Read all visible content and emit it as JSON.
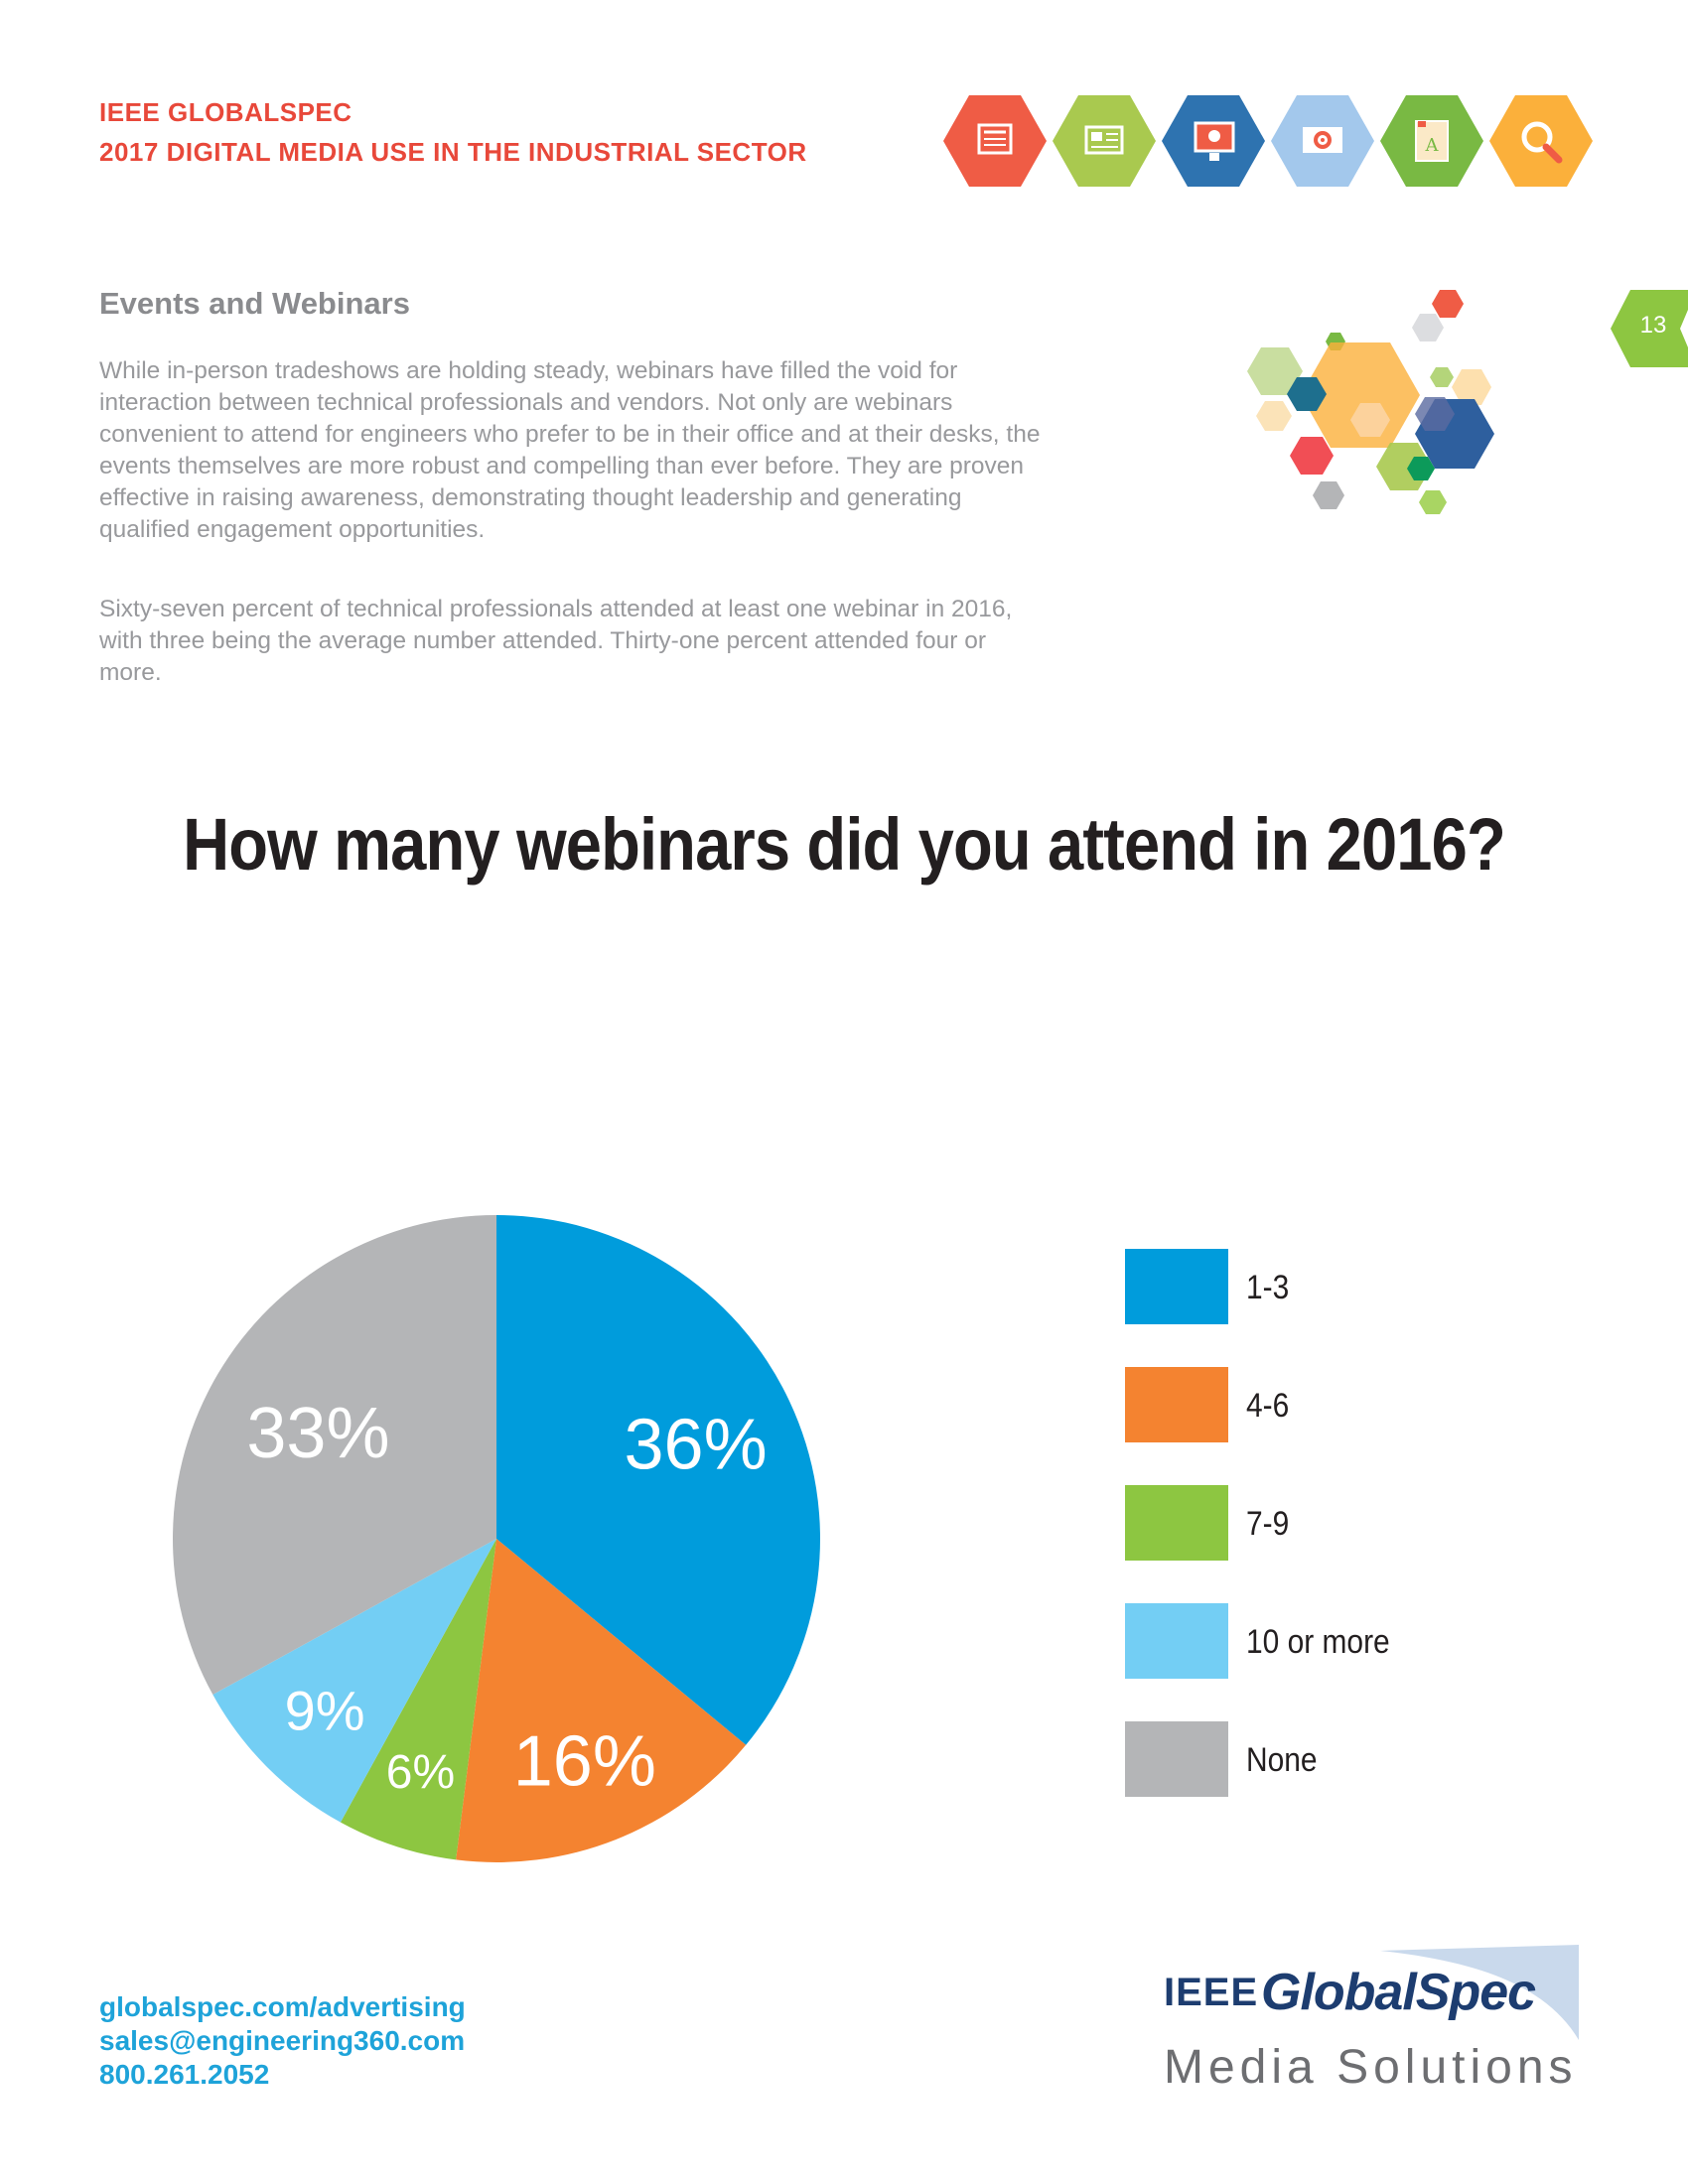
{
  "header": {
    "brand_line_1": "IEEE GLOBALSPEC",
    "brand_line_2": "2017 DIGITAL MEDIA USE IN THE INDUSTRIAL SECTOR",
    "icons": [
      {
        "name": "newspaper-icon",
        "color": "#ef5c45"
      },
      {
        "name": "article-icon",
        "color": "#a9c94f"
      },
      {
        "name": "video-monitor-icon",
        "color": "#2e73b0"
      },
      {
        "name": "email-target-icon",
        "color": "#a3c8ec"
      },
      {
        "name": "book-icon",
        "color": "#79b943"
      },
      {
        "name": "search-icon",
        "color": "#fbb03b"
      }
    ]
  },
  "page_number": "13",
  "section": {
    "title": "Events and Webinars",
    "paragraph_1": "While in-person tradeshows are holding steady, webinars have filled the void for interaction between technical professionals and vendors. Not only are webinars convenient to attend for engineers who prefer to be in their office and at their desks, the events themselves are more robust and compelling than ever before. They are proven effective in raising awareness, demonstrating thought leadership and generating qualified engagement opportunities.",
    "paragraph_2": "Sixty-seven percent of technical professionals attended at least one webinar in 2016, with three being the average number attended. Thirty-one percent attended four or more."
  },
  "chart_data": {
    "type": "pie",
    "title": "How many webinars did you attend in 2016?",
    "start": "12 o'clock, clockwise",
    "legend_position": "right",
    "slices": [
      {
        "label": "1-3",
        "value": 36,
        "display": "36%",
        "color": "#009cdc"
      },
      {
        "label": "4-6",
        "value": 16,
        "display": "16%",
        "color": "#f48330"
      },
      {
        "label": "7-9",
        "value": 6,
        "display": "6%",
        "color": "#8dc641"
      },
      {
        "label": "10 or more",
        "value": 9,
        "display": "9%",
        "color": "#73cef4"
      },
      {
        "label": "None",
        "value": 33,
        "display": "33%",
        "color": "#b4b5b7"
      }
    ]
  },
  "footer": {
    "website": "globalspec.com/advertising",
    "email": "sales@engineering360.com",
    "phone": "800.261.2052",
    "logo_ieee": "IEEE",
    "logo_name": "GlobalSpec",
    "logo_sub": "Media Solutions"
  }
}
